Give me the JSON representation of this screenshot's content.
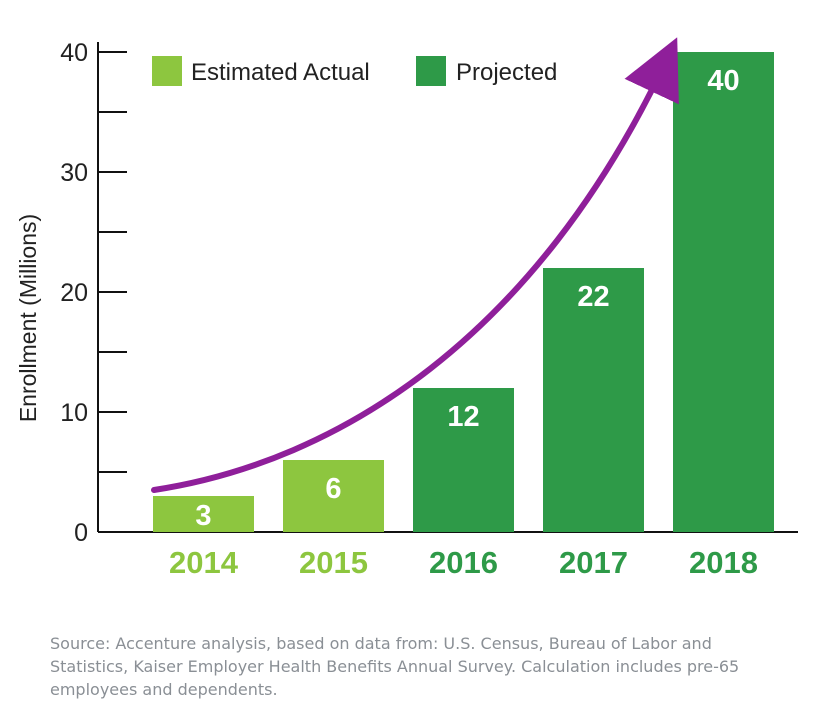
{
  "chart_data": {
    "type": "bar",
    "ylabel": "Enrollment (Millions)",
    "ylim": [
      0,
      40
    ],
    "y_ticks": [
      "0",
      "10",
      "20",
      "30",
      "40"
    ],
    "categories": [
      "2014",
      "2015",
      "2016",
      "2017",
      "2018"
    ],
    "values": [
      3,
      6,
      12,
      22,
      40
    ],
    "value_labels": [
      "3",
      "6",
      "12",
      "22",
      "40"
    ],
    "bar_groups": [
      "Estimated Actual",
      "Estimated Actual",
      "Projected",
      "Projected",
      "Projected"
    ],
    "legend": [
      {
        "name": "Estimated Actual",
        "color": "#8dc63f"
      },
      {
        "name": "Projected",
        "color": "#2e9a48"
      }
    ],
    "legend_position": "top-left",
    "trend_arrow_color": "#8f1f9a",
    "grid": false
  },
  "source_text": "Source:  Accenture analysis, based on data from: U.S. Census, Bureau of Labor and Statistics, Kaiser Employer Health Benefits Annual Survey. Calculation includes pre-65 employees and dependents."
}
